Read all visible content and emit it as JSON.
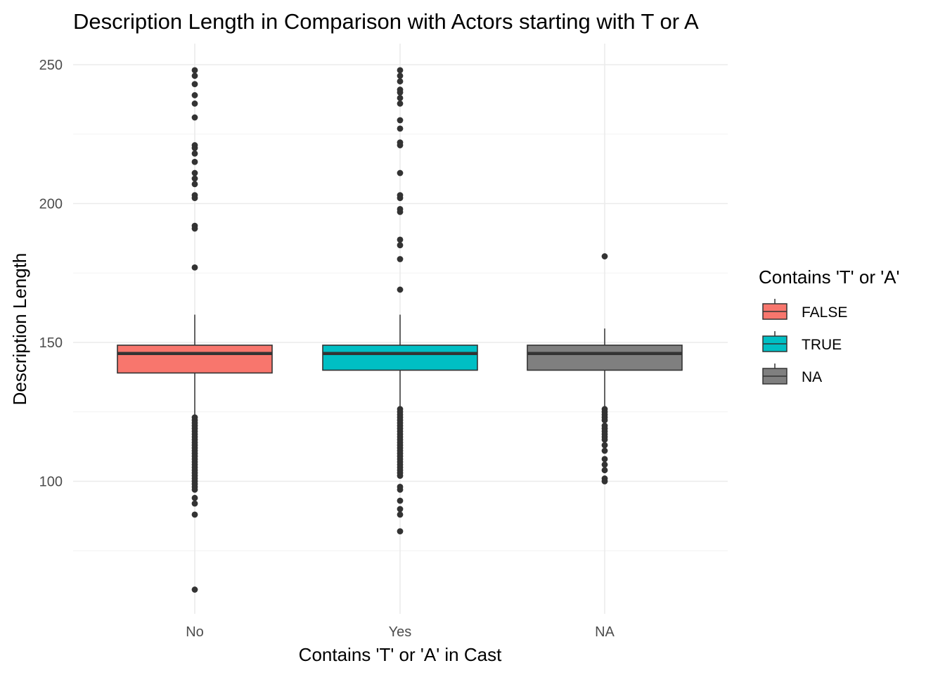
{
  "chart_data": {
    "type": "boxplot",
    "title": "Description Length in Comparison with Actors starting with T or A",
    "xlabel": "Contains 'T' or 'A' in Cast",
    "ylabel": "Description Length",
    "categories": [
      "No",
      "Yes",
      "NA"
    ],
    "ylim": [
      55,
      260
    ],
    "y_ticks": [
      100,
      150,
      200,
      250
    ],
    "grid": true,
    "legend": {
      "title": "Contains 'T' or 'A'",
      "position": "right",
      "entries": [
        {
          "label": "FALSE",
          "color": "#F8766D"
        },
        {
          "label": "TRUE",
          "color": "#00BFC4"
        },
        {
          "label": "NA",
          "color": "#7F7F7F"
        }
      ]
    },
    "boxes": [
      {
        "category": "No",
        "fill": "#F8766D",
        "min": 124,
        "q1": 139,
        "median": 146,
        "q3": 149,
        "max": 160,
        "outliers": [
          248,
          246,
          243,
          239,
          236,
          231,
          221,
          220,
          218,
          215,
          211,
          209,
          207,
          203,
          202,
          192,
          191,
          177,
          123,
          122,
          121,
          120,
          119,
          118,
          117,
          116,
          115,
          114,
          113,
          112,
          111,
          110,
          109,
          108,
          107,
          106,
          105,
          104,
          103,
          102,
          101,
          100,
          99,
          98,
          97,
          94,
          92,
          88,
          61
        ]
      },
      {
        "category": "Yes",
        "fill": "#00BFC4",
        "min": 127,
        "q1": 140,
        "median": 146,
        "q3": 149,
        "max": 160,
        "outliers": [
          248,
          246,
          244,
          241,
          240,
          238,
          236,
          230,
          227,
          222,
          221,
          211,
          203,
          202,
          198,
          197,
          187,
          185,
          180,
          169,
          126,
          125,
          124,
          123,
          122,
          121,
          120,
          119,
          118,
          117,
          116,
          115,
          114,
          113,
          112,
          111,
          110,
          109,
          108,
          107,
          106,
          105,
          104,
          103,
          102,
          98,
          97,
          93,
          90,
          88,
          82
        ]
      },
      {
        "category": "NA",
        "fill": "#7F7F7F",
        "min": 127,
        "q1": 140,
        "median": 146,
        "q3": 149,
        "max": 155,
        "outliers": [
          181,
          126,
          125,
          124,
          123,
          122,
          120,
          119,
          118,
          117,
          116,
          115,
          113,
          111,
          108,
          106,
          104,
          101,
          100
        ]
      }
    ]
  }
}
